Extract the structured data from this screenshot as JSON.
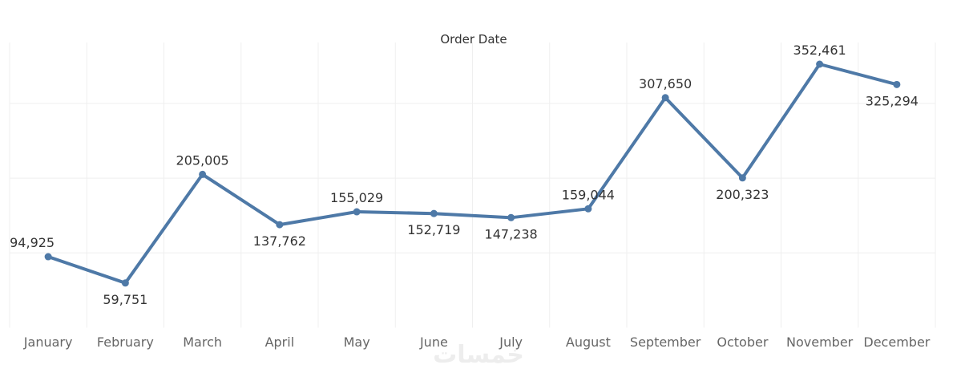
{
  "chart_data": {
    "type": "line",
    "title": "Order Date",
    "categories": [
      "January",
      "February",
      "March",
      "April",
      "May",
      "June",
      "July",
      "August",
      "September",
      "October",
      "November",
      "December"
    ],
    "series": [
      {
        "values": [
          94925,
          59751,
          205005,
          137762,
          155029,
          152719,
          147238,
          159044,
          307650,
          200323,
          352461,
          325294
        ]
      }
    ],
    "data_labels": [
      "94,925",
      "59,751",
      "205,005",
      "137,762",
      "155,029",
      "152,719",
      "147,238",
      "159,044",
      "307,650",
      "200,323",
      "352,461",
      "325,294"
    ],
    "ylim": [
      0,
      360000
    ],
    "grid": true,
    "color": "#4e79a7"
  },
  "watermark": "خمسات"
}
